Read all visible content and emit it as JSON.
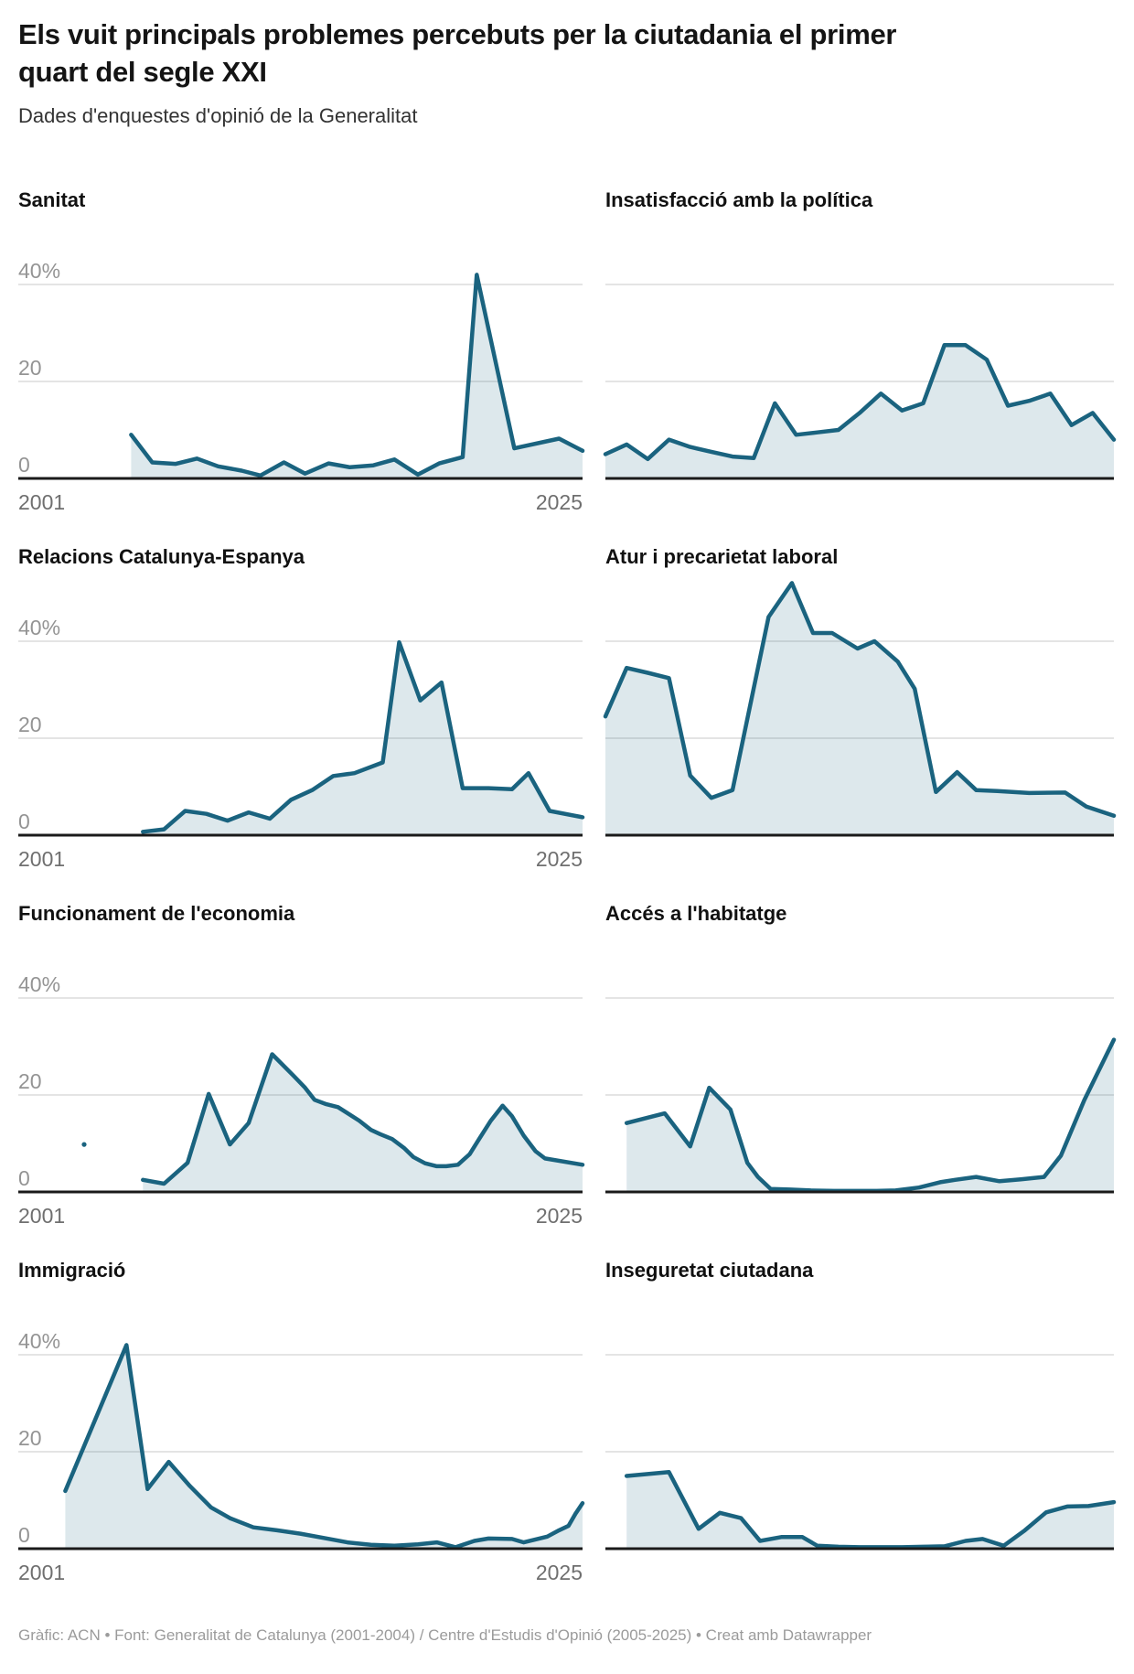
{
  "header": {
    "title": "Els vuit principals problemes percebuts per la ciutadania el primer quart del segle XXI",
    "subtitle": "Dades d'enquestes d'opinió de la Generalitat"
  },
  "footer": {
    "credit": "Gràfic: ACN • Font: Generalitat de Catalunya (2001-2004) / Centre d'Estudis d'Opinió (2005-2025) • Creat amb Datawrapper"
  },
  "colors": {
    "line": "#1a637f",
    "area_fill": "rgba(26,99,127,0.15)",
    "gridline": "#dcdcdc",
    "axis": "#1a1a1a",
    "y_label": "#949494",
    "x_label": "#6f6f6f"
  },
  "chart_data": {
    "type": "area",
    "title": "Els vuit principals problemes percebuts per la ciutadania el primer quart del segle XXI",
    "subtitle": "Dades d'enquestes d'opinió de la Generalitat",
    "x_range": [
      2001,
      2025
    ],
    "ylim": [
      0,
      52
    ],
    "gridline_values": [
      20,
      40
    ],
    "y_tick_labels": [
      "40%",
      "20",
      "0"
    ],
    "x_tick_labels": [
      "2001",
      "2025"
    ],
    "legend": "none",
    "panels": [
      {
        "title": "Sanitat",
        "side": "left",
        "show_axis_labels": true,
        "points": [
          [
            2005.8,
            9
          ],
          [
            2006.7,
            3.3
          ],
          [
            2007.7,
            3.0
          ],
          [
            2008.6,
            4.1
          ],
          [
            2009.5,
            2.5
          ],
          [
            2010.5,
            1.6
          ],
          [
            2011.3,
            0.6
          ],
          [
            2012.3,
            3.3
          ],
          [
            2013.2,
            1.0
          ],
          [
            2014.2,
            3.1
          ],
          [
            2015.1,
            2.3
          ],
          [
            2016.1,
            2.7
          ],
          [
            2017.0,
            3.9
          ],
          [
            2018.0,
            0.8
          ],
          [
            2018.9,
            3.1
          ],
          [
            2019.9,
            4.4
          ],
          [
            2020.5,
            42
          ],
          [
            2022.1,
            6.2
          ],
          [
            2024.0,
            8.2
          ],
          [
            2025,
            5.7
          ]
        ]
      },
      {
        "title": "Insatisfacció amb la política",
        "side": "right",
        "show_axis_labels": false,
        "points": [
          [
            2001,
            5
          ],
          [
            2002,
            7
          ],
          [
            2003,
            4
          ],
          [
            2004,
            8
          ],
          [
            2005,
            6.5
          ],
          [
            2006,
            5.5
          ],
          [
            2007,
            4.5
          ],
          [
            2008,
            4.2
          ],
          [
            2009,
            15.5
          ],
          [
            2010,
            9
          ],
          [
            2011,
            9.5
          ],
          [
            2012,
            10
          ],
          [
            2013,
            13.5
          ],
          [
            2014,
            17.5
          ],
          [
            2015,
            14
          ],
          [
            2016,
            15.5
          ],
          [
            2017,
            27.5
          ],
          [
            2018,
            27.5
          ],
          [
            2019,
            24.5
          ],
          [
            2020,
            15
          ],
          [
            2021,
            16
          ],
          [
            2022,
            17.5
          ],
          [
            2023,
            11
          ],
          [
            2024,
            13.5
          ],
          [
            2025,
            8
          ]
        ]
      },
      {
        "title": "Relacions Catalunya-Espanya",
        "side": "left",
        "show_axis_labels": true,
        "points": [
          [
            2006.3,
            0.7
          ],
          [
            2007.2,
            1.2
          ],
          [
            2008.1,
            5
          ],
          [
            2009.0,
            4.4
          ],
          [
            2009.9,
            3
          ],
          [
            2010.8,
            4.7
          ],
          [
            2011.7,
            3.4
          ],
          [
            2012.6,
            7.3
          ],
          [
            2013.5,
            9.3
          ],
          [
            2014.4,
            12.2
          ],
          [
            2015.3,
            12.8
          ],
          [
            2016.5,
            15
          ],
          [
            2017.2,
            39.8
          ],
          [
            2018.1,
            27.8
          ],
          [
            2019.0,
            31.5
          ],
          [
            2019.9,
            9.7
          ],
          [
            2021.0,
            9.7
          ],
          [
            2022.0,
            9.5
          ],
          [
            2022.7,
            12.8
          ],
          [
            2023.6,
            5
          ],
          [
            2025,
            3.7
          ]
        ]
      },
      {
        "title": "Atur i precarietat laboral",
        "side": "right",
        "show_axis_labels": false,
        "points": [
          [
            2001,
            24.5
          ],
          [
            2002,
            34.5
          ],
          [
            2003,
            33.5
          ],
          [
            2004,
            32.4
          ],
          [
            2005,
            12.3
          ],
          [
            2006,
            7.7
          ],
          [
            2007,
            9.3
          ],
          [
            2008.7,
            45
          ],
          [
            2009.8,
            52
          ],
          [
            2010.8,
            41.7
          ],
          [
            2011.7,
            41.7
          ],
          [
            2012.9,
            38.5
          ],
          [
            2013.7,
            40
          ],
          [
            2014.8,
            35.8
          ],
          [
            2015.6,
            30.2
          ],
          [
            2016.6,
            8.9
          ],
          [
            2017.6,
            13
          ],
          [
            2018.5,
            9.3
          ],
          [
            2019.5,
            9.1
          ],
          [
            2021.0,
            8.7
          ],
          [
            2022.7,
            8.8
          ],
          [
            2023.7,
            5.9
          ],
          [
            2025,
            4
          ]
        ]
      },
      {
        "title": "Funcionament de l'economia",
        "side": "left",
        "show_axis_labels": true,
        "isolated_point": [
          2003.8,
          9.8
        ],
        "points": [
          [
            2006.3,
            2.5
          ],
          [
            2007.2,
            1.7
          ],
          [
            2008.2,
            6
          ],
          [
            2009.1,
            20.2
          ],
          [
            2010.0,
            9.8
          ],
          [
            2010.8,
            14.2
          ],
          [
            2011.8,
            28.4
          ],
          [
            2012.7,
            24
          ],
          [
            2013.2,
            21.5
          ],
          [
            2013.6,
            19
          ],
          [
            2014.1,
            18.1
          ],
          [
            2014.6,
            17.5
          ],
          [
            2015.5,
            14.7
          ],
          [
            2016.0,
            12.8
          ],
          [
            2016.4,
            11.9
          ],
          [
            2016.9,
            10.9
          ],
          [
            2017.4,
            9.1
          ],
          [
            2017.8,
            7.2
          ],
          [
            2018.3,
            5.9
          ],
          [
            2018.8,
            5.3
          ],
          [
            2019.2,
            5.3
          ],
          [
            2019.7,
            5.6
          ],
          [
            2020.2,
            7.8
          ],
          [
            2020.6,
            10.9
          ],
          [
            2021.1,
            14.7
          ],
          [
            2021.6,
            17.8
          ],
          [
            2022.0,
            15.6
          ],
          [
            2022.5,
            11.6
          ],
          [
            2023.0,
            8.4
          ],
          [
            2023.4,
            6.9
          ],
          [
            2025,
            5.6
          ]
        ]
      },
      {
        "title": "Accés a l'habitatge",
        "side": "right",
        "show_axis_labels": false,
        "points": [
          [
            2002,
            14.2
          ],
          [
            2003.8,
            16.2
          ],
          [
            2005.0,
            9.4
          ],
          [
            2005.9,
            21.5
          ],
          [
            2006.9,
            17
          ],
          [
            2007.7,
            6
          ],
          [
            2008.2,
            3.1
          ],
          [
            2008.8,
            0.6
          ],
          [
            2009.7,
            0.5
          ],
          [
            2010.7,
            0.3
          ],
          [
            2011.8,
            0.2
          ],
          [
            2012.8,
            0.2
          ],
          [
            2013.8,
            0.2
          ],
          [
            2014.7,
            0.3
          ],
          [
            2015.8,
            0.9
          ],
          [
            2016.8,
            2
          ],
          [
            2017.5,
            2.5
          ],
          [
            2018.5,
            3.1
          ],
          [
            2019.6,
            2.2
          ],
          [
            2020.6,
            2.6
          ],
          [
            2021.7,
            3.1
          ],
          [
            2022.5,
            7.5
          ],
          [
            2023.6,
            18.9
          ],
          [
            2025,
            31.4
          ]
        ]
      },
      {
        "title": "Immigració",
        "side": "left",
        "show_axis_labels": true,
        "points": [
          [
            2003,
            11.9
          ],
          [
            2005.6,
            42
          ],
          [
            2006.5,
            12.3
          ],
          [
            2007.4,
            17.9
          ],
          [
            2008.3,
            12.9
          ],
          [
            2009.2,
            8.5
          ],
          [
            2010,
            6.3
          ],
          [
            2011,
            4.4
          ],
          [
            2012,
            3.8
          ],
          [
            2013,
            3.1
          ],
          [
            2014,
            2.2
          ],
          [
            2015,
            1.3
          ],
          [
            2016,
            0.8
          ],
          [
            2017,
            0.6
          ],
          [
            2018,
            0.9
          ],
          [
            2018.8,
            1.3
          ],
          [
            2019.6,
            0.3
          ],
          [
            2020.4,
            1.6
          ],
          [
            2021,
            2.1
          ],
          [
            2022,
            2
          ],
          [
            2022.5,
            1.3
          ],
          [
            2023.5,
            2.5
          ],
          [
            2024,
            3.8
          ],
          [
            2024.4,
            4.7
          ],
          [
            2024.7,
            7.2
          ],
          [
            2025,
            9.4
          ]
        ]
      },
      {
        "title": "Inseguretat ciutadana",
        "side": "right",
        "show_axis_labels": false,
        "points": [
          [
            2002,
            15
          ],
          [
            2004,
            15.8
          ],
          [
            2005.4,
            4.1
          ],
          [
            2006.4,
            7.4
          ],
          [
            2007.4,
            6.3
          ],
          [
            2008.3,
            1.6
          ],
          [
            2009.3,
            2.4
          ],
          [
            2010.3,
            2.4
          ],
          [
            2011,
            0.6
          ],
          [
            2012,
            0.4
          ],
          [
            2013,
            0.3
          ],
          [
            2014,
            0.3
          ],
          [
            2015,
            0.3
          ],
          [
            2016,
            0.4
          ],
          [
            2017,
            0.5
          ],
          [
            2018,
            1.6
          ],
          [
            2018.8,
            2
          ],
          [
            2019.8,
            0.6
          ],
          [
            2020.8,
            3.8
          ],
          [
            2021.8,
            7.5
          ],
          [
            2022.8,
            8.7
          ],
          [
            2023.8,
            8.8
          ],
          [
            2025,
            9.6
          ]
        ]
      }
    ]
  }
}
